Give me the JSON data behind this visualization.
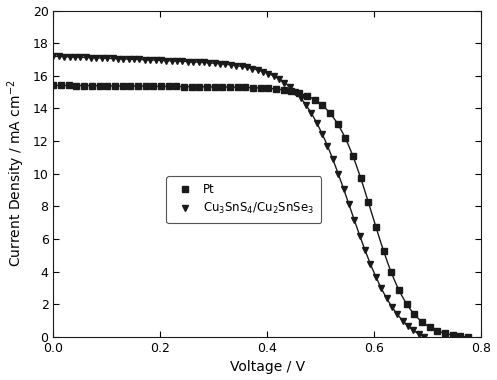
{
  "xlabel": "Voltage / V",
  "ylabel": "Current Density / mA cm$^{-2}$",
  "xlim": [
    0,
    0.8
  ],
  "ylim": [
    0,
    20
  ],
  "xticks": [
    0.0,
    0.2,
    0.4,
    0.6,
    0.8
  ],
  "yticks": [
    0,
    2,
    4,
    6,
    8,
    10,
    12,
    14,
    16,
    18,
    20
  ],
  "background_color": "#ffffff",
  "series": [
    {
      "label": "Pt",
      "marker": "s",
      "color": "#1a1a1a",
      "jsc": 15.42,
      "slope_flat": -0.3,
      "voc": 0.775,
      "v_knee": 0.595,
      "sharpness": 28,
      "n_markers": 55
    },
    {
      "label": "Cu$_3$SnS$_4$/Cu$_2$SnSe$_3$",
      "marker": "v",
      "color": "#1a1a1a",
      "jsc": 17.2,
      "slope_flat": -1.2,
      "voc": 0.693,
      "v_knee": 0.555,
      "sharpness": 22,
      "n_markers": 70
    }
  ]
}
